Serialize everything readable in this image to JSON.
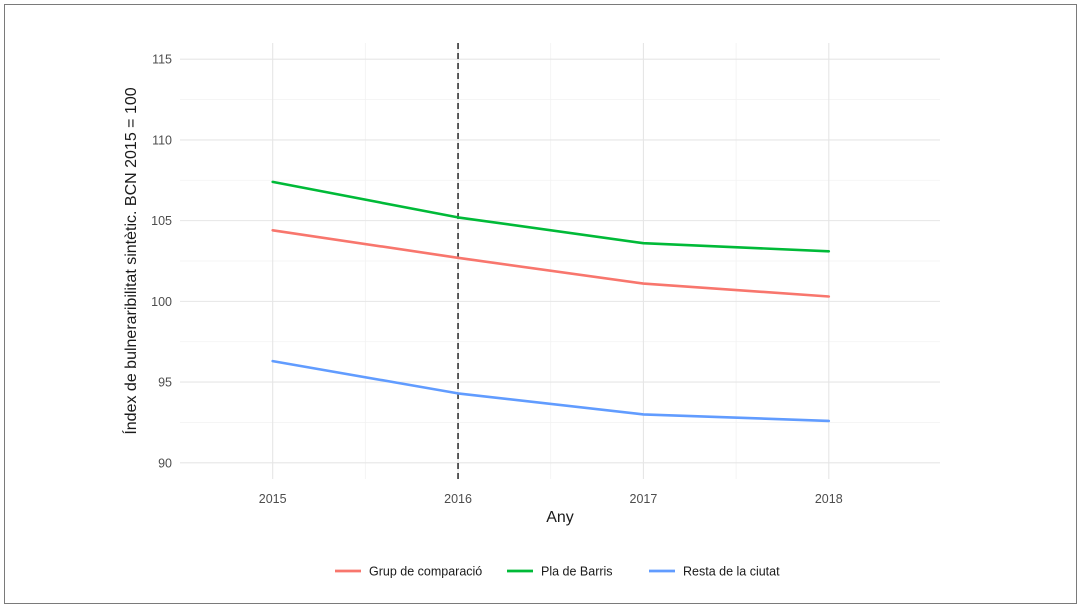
{
  "chart_data": {
    "type": "line",
    "xlabel": "Any",
    "ylabel": "Índex de bulneraribilitat sintètic. BCN 2015 = 100",
    "x": [
      2015,
      2016,
      2017,
      2018
    ],
    "x_tick_labels": [
      "2015",
      "2016",
      "2017",
      "2018"
    ],
    "xlim": [
      2014.5,
      2018.6
    ],
    "ylim": [
      89,
      116
    ],
    "y_ticks": [
      90,
      95,
      100,
      105,
      110,
      115
    ],
    "y_tick_labels": [
      "90",
      "95",
      "100",
      "105",
      "110",
      "115"
    ],
    "grid": true,
    "legend_position": "bottom",
    "reference_line": {
      "x": 2016,
      "style": "dashed",
      "color": "#333333"
    },
    "series": [
      {
        "name": "Grup de comparació",
        "color": "#f8766d",
        "values": [
          104.4,
          102.7,
          101.1,
          100.3
        ]
      },
      {
        "name": "Pla de Barris",
        "color": "#00ba38",
        "values": [
          107.4,
          105.2,
          103.6,
          103.1
        ]
      },
      {
        "name": "Resta de la ciutat",
        "color": "#619cff",
        "values": [
          96.3,
          94.3,
          93.0,
          92.6
        ]
      }
    ]
  }
}
